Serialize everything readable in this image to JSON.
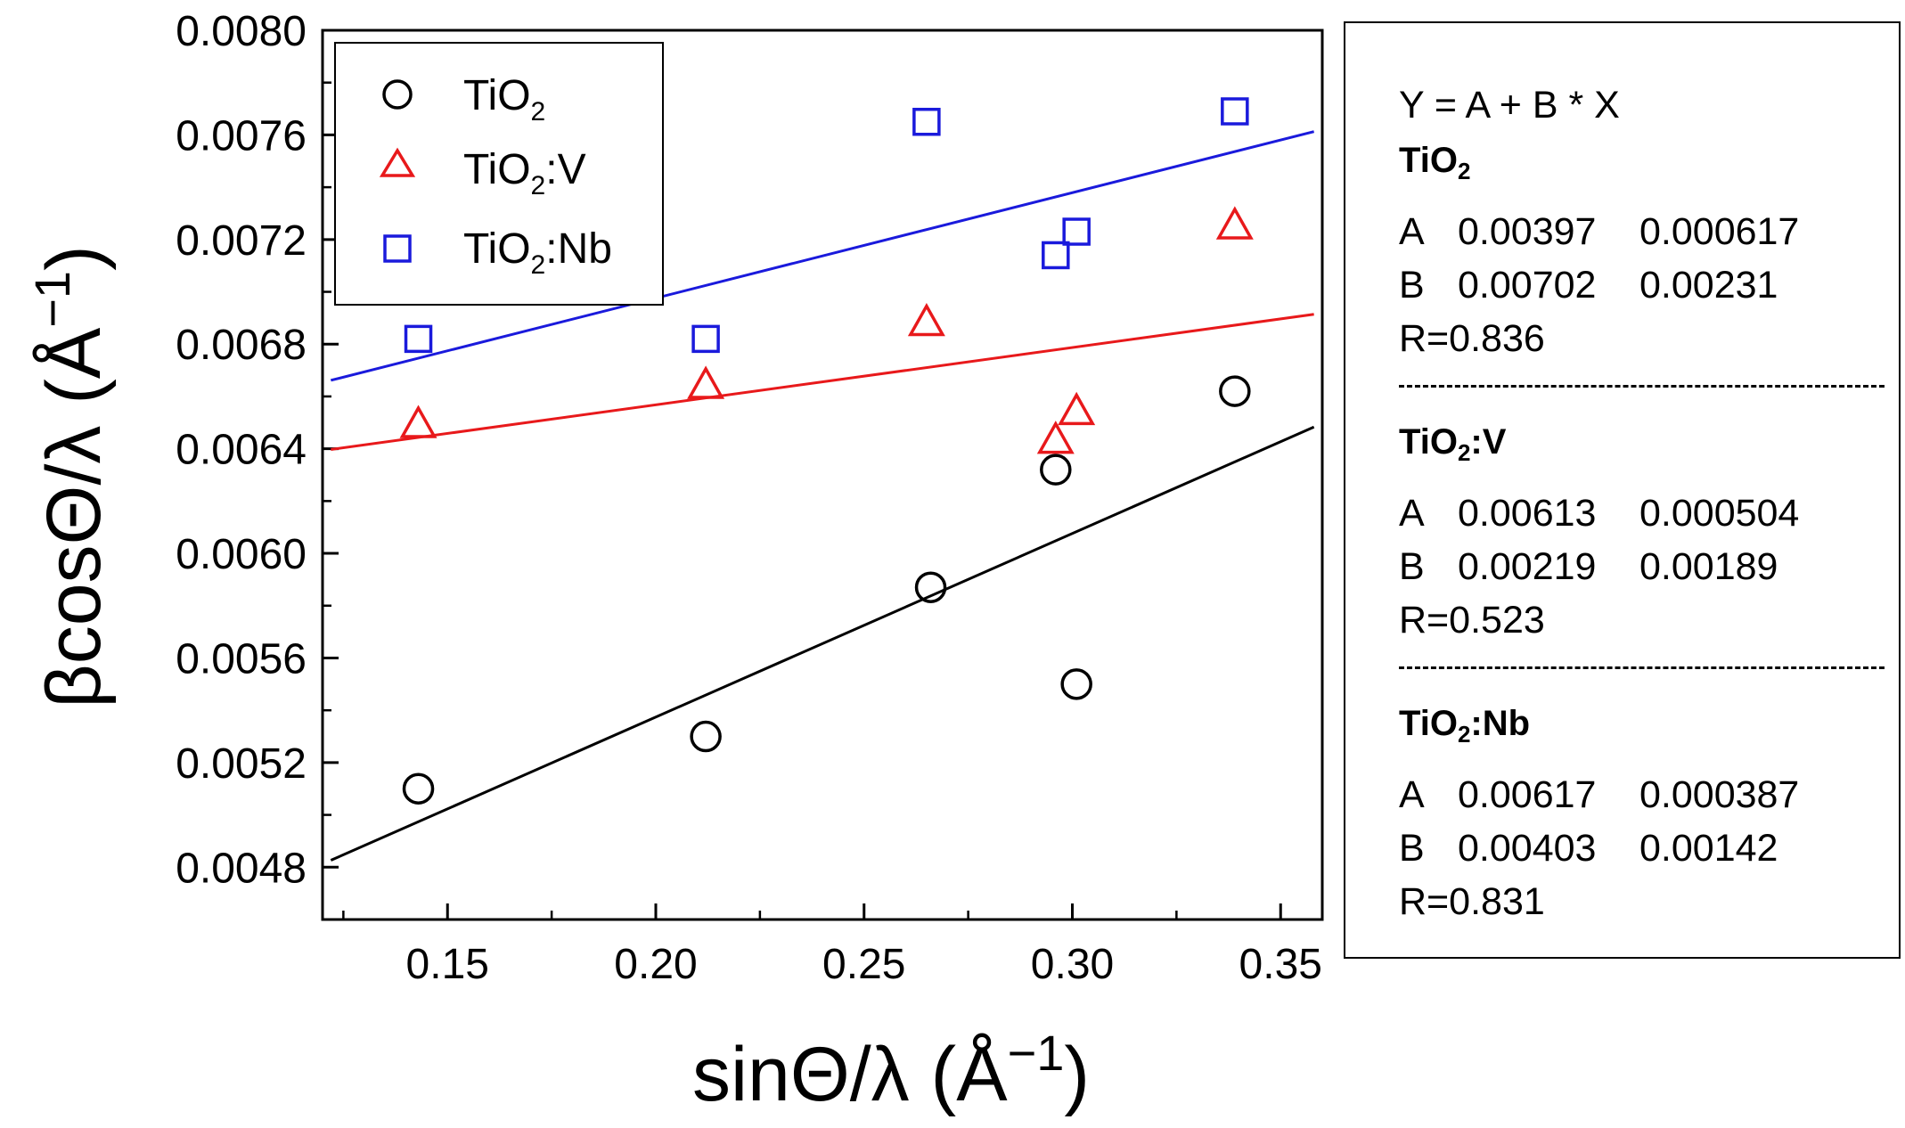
{
  "chart_data": {
    "type": "scatter",
    "xlabel": "sinΘ/λ  (Å−1)",
    "ylabel": "βcosΘ/λ (Å−1)",
    "xlim": [
      0.12,
      0.36
    ],
    "ylim": [
      0.0046,
      0.008
    ],
    "x_ticks": [
      0.15,
      0.2,
      0.25,
      0.3,
      0.35
    ],
    "x_tick_labels": [
      "0.15",
      "0.20",
      "0.25",
      "0.30",
      "0.35"
    ],
    "y_ticks": [
      0.0048,
      0.0052,
      0.0056,
      0.006,
      0.0064,
      0.0068,
      0.0072,
      0.0076,
      0.008
    ],
    "y_tick_labels": [
      "0.0048",
      "0.0052",
      "0.0056",
      "0.0060",
      "0.0064",
      "0.0068",
      "0.0072",
      "0.0076",
      "0.0080"
    ],
    "legend_placement": "top-left",
    "grid": false,
    "series": [
      {
        "name": "TiO2",
        "marker": "circle",
        "color": "#000000",
        "x": [
          0.143,
          0.212,
          0.266,
          0.296,
          0.301,
          0.339
        ],
        "y": [
          0.0051,
          0.0053,
          0.00587,
          0.00632,
          0.0055,
          0.00662
        ],
        "fit": {
          "A": 0.00397,
          "B": 0.00702
        }
      },
      {
        "name": "TiO2:V",
        "marker": "triangle",
        "color": "#e8191b",
        "x": [
          0.143,
          0.212,
          0.265,
          0.296,
          0.301,
          0.339
        ],
        "y": [
          0.00649,
          0.00664,
          0.00688,
          0.00643,
          0.00654,
          0.00725
        ],
        "fit": {
          "A": 0.00613,
          "B": 0.00219
        }
      },
      {
        "name": "TiO2:Nb",
        "marker": "square",
        "color": "#1a1adc",
        "x": [
          0.143,
          0.212,
          0.265,
          0.296,
          0.301,
          0.339
        ],
        "y": [
          0.00682,
          0.00682,
          0.00765,
          0.00714,
          0.00723,
          0.00769
        ],
        "fit": {
          "A": 0.00617,
          "B": 0.00403
        }
      }
    ]
  },
  "fit_panel": {
    "equation": "Y = A + B * X",
    "fits": [
      {
        "title_main": "TiO",
        "title_sub": "2",
        "title_rest": "",
        "A": [
          "A",
          "0.00397",
          "0.000617"
        ],
        "B": [
          "B",
          "0.00702",
          "0.00231"
        ],
        "R": "R=0.836"
      },
      {
        "title_main": "TiO",
        "title_sub": "2",
        "title_rest": ":V",
        "A": [
          "A",
          "0.00613",
          "0.000504"
        ],
        "B": [
          "B",
          "0.00219",
          "0.00189"
        ],
        "R": "R=0.523"
      },
      {
        "title_main": "TiO",
        "title_sub": "2",
        "title_rest": ":Nb",
        "A": [
          "A",
          "0.00617",
          "0.000387"
        ],
        "B": [
          "B",
          "0.00403",
          "0.00142"
        ],
        "R": "R=0.831"
      }
    ]
  },
  "legend": {
    "items": [
      {
        "main": "TiO",
        "sub": "2",
        "rest": ""
      },
      {
        "main": "TiO",
        "sub": "2",
        "rest": ":V"
      },
      {
        "main": "TiO",
        "sub": "2",
        "rest": ":Nb"
      }
    ]
  },
  "axis_titles": {
    "x_main": "sinΘ/λ  (Å",
    "x_sup": "−1",
    "x_close": ")",
    "y_main": "βcosΘ/λ (Å",
    "y_sup": "−1",
    "y_close": ")"
  }
}
